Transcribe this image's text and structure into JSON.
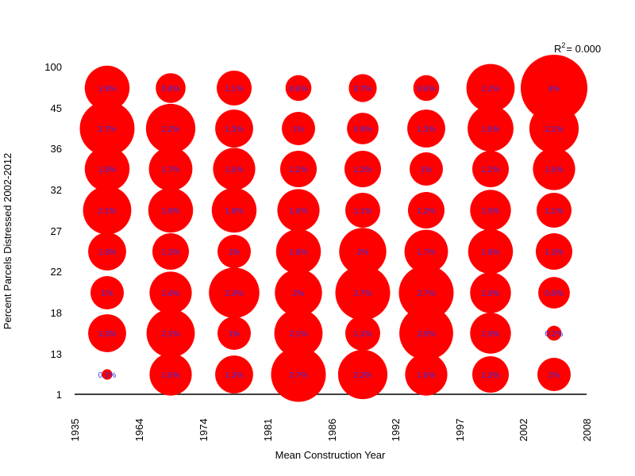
{
  "chart_data": {
    "type": "scatter",
    "subtype": "bubble",
    "xlabel": "Mean Construction Year",
    "ylabel": "Percent Parcels Distressed 2002-2012",
    "x_tick_labels": [
      "1935",
      "1964",
      "1974",
      "1981",
      "1986",
      "1992",
      "1997",
      "2002",
      "2008"
    ],
    "y_tick_labels": [
      "1",
      "13",
      "18",
      "22",
      "27",
      "32",
      "36",
      "45",
      "100"
    ],
    "annotation": {
      "prefix": "R",
      "superscript": "2",
      "suffix": "= 0.000"
    },
    "bubble_color": "#ff0000",
    "label_color": "#2f2fe6",
    "grid": false,
    "rows": [
      {
        "y_bin": "45-100",
        "values": [
          1.8,
          0.8,
          1.1,
          0.6,
          0.7,
          0.6,
          2.1,
          4.0
        ],
        "labels": [
          "1.8%",
          "0.8%",
          "1.1%",
          "0.6%",
          "0.7%",
          "0.6%",
          "2.1%",
          "4%"
        ]
      },
      {
        "y_bin": "36-45",
        "values": [
          2.7,
          2.2,
          1.3,
          1.0,
          0.9,
          1.3,
          1.9,
          2.2
        ],
        "labels": [
          "2.7%",
          "2.2%",
          "1.3%",
          "1%",
          "0.9%",
          "1.3%",
          "1.9%",
          "2.2%"
        ]
      },
      {
        "y_bin": "32-36",
        "values": [
          1.8,
          1.7,
          1.6,
          1.2,
          1.2,
          1.0,
          1.2,
          1.6
        ],
        "labels": [
          "1.8%",
          "1.7%",
          "1.6%",
          "1.2%",
          "1.2%",
          "1%",
          "1.2%",
          "1.6%"
        ]
      },
      {
        "y_bin": "27-32",
        "values": [
          2.1,
          1.8,
          1.8,
          1.6,
          1.1,
          1.2,
          1.5,
          1.1
        ],
        "labels": [
          "2.1%",
          "1.8%",
          "1.8%",
          "1.6%",
          "1.1%",
          "1.2%",
          "1.5%",
          "1.1%"
        ]
      },
      {
        "y_bin": "22-27",
        "values": [
          1.3,
          1.2,
          1.0,
          1.8,
          2.0,
          1.7,
          1.8,
          1.2
        ],
        "labels": [
          "1.3%",
          "1.2%",
          "1%",
          "1.8%",
          "2%",
          "1.7%",
          "1.8%",
          "1.2%"
        ]
      },
      {
        "y_bin": "18-22",
        "values": [
          1.0,
          1.6,
          2.3,
          2.0,
          2.7,
          2.7,
          1.5,
          0.9
        ],
        "labels": [
          "1%",
          "1.6%",
          "2.3%",
          "2%",
          "2.7%",
          "2.7%",
          "1.5%",
          "0.9%"
        ]
      },
      {
        "y_bin": "13-18",
        "values": [
          1.3,
          2.1,
          1.0,
          2.1,
          1.1,
          2.6,
          1.5,
          0.2
        ],
        "labels": [
          "1.3%",
          "2.1%",
          "1%",
          "2.1%",
          "1.1%",
          "2.6%",
          "1.5%",
          "0.2%"
        ]
      },
      {
        "y_bin": "1-13",
        "values": [
          0.1,
          1.6,
          1.3,
          2.7,
          2.2,
          1.6,
          1.2,
          1.0
        ],
        "labels": [
          "0.1%",
          "1.6%",
          "1.3%",
          "2.7%",
          "2.2%",
          "1.6%",
          "1.2%",
          "1%"
        ]
      }
    ]
  }
}
